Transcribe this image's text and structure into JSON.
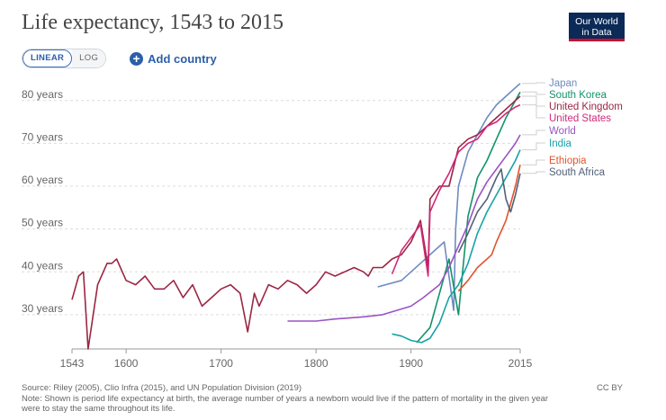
{
  "header": {
    "title": "Life expectancy, 1543 to 2015",
    "logo_line1": "Our World",
    "logo_line2": "in Data"
  },
  "toolbar": {
    "linear_label": "LINEAR",
    "log_label": "LOG",
    "add_country_label": "Add country"
  },
  "footer": {
    "source": "Source: Riley (2005), Clio Infra (2015), and UN Population Division (2019)",
    "note": "Note: Shown is period life expectancy at birth, the average number of years a newborn would live if the pattern of mortality in the given year",
    "note2": "were to stay the same throughout its life.",
    "license": "CC BY"
  },
  "chart_data": {
    "type": "line",
    "title": "Life expectancy, 1543 to 2015",
    "xlim": [
      1543,
      2015
    ],
    "ylim": [
      22,
      85
    ],
    "x_ticks": [
      1543,
      1600,
      1700,
      1800,
      1900,
      2015
    ],
    "x_tick_labels": [
      "1543",
      "1600",
      "1700",
      "1800",
      "1900",
      "2015"
    ],
    "y_ticks": [
      30,
      40,
      50,
      60,
      70,
      80
    ],
    "y_tick_labels": [
      "30 years",
      "40 years",
      "50 years",
      "60 years",
      "70 years",
      "80 years"
    ],
    "grid": "horizontal-dashed",
    "legend": "right-end-labels",
    "series": [
      {
        "name": "Japan",
        "color": "#6f8bbf",
        "x": [
          1865,
          1890,
          1910,
          1925,
          1935,
          1945,
          1947,
          1950,
          1960,
          1970,
          1980,
          1990,
          2000,
          2010,
          2015
        ],
        "y": [
          36.5,
          38,
          42,
          45,
          47,
          31,
          50,
          60,
          68,
          72,
          76,
          79,
          81,
          83,
          84
        ]
      },
      {
        "name": "South Korea",
        "color": "#12936a",
        "x": [
          1906,
          1920,
          1940,
          1950,
          1960,
          1970,
          1980,
          1990,
          2000,
          2010,
          2015
        ],
        "y": [
          23.5,
          27,
          43,
          30,
          53,
          62,
          66,
          71,
          76,
          80,
          82
        ]
      },
      {
        "name": "United Kingdom",
        "color": "#9c2643",
        "x": [
          1543,
          1550,
          1555,
          1560,
          1570,
          1580,
          1585,
          1590,
          1600,
          1610,
          1620,
          1630,
          1640,
          1650,
          1660,
          1670,
          1680,
          1690,
          1700,
          1710,
          1720,
          1728,
          1735,
          1740,
          1750,
          1760,
          1770,
          1780,
          1790,
          1800,
          1810,
          1820,
          1830,
          1840,
          1850,
          1855,
          1860,
          1870,
          1880,
          1890,
          1900,
          1910,
          1918,
          1920,
          1930,
          1940,
          1950,
          1960,
          1970,
          1980,
          1990,
          2000,
          2010,
          2015
        ],
        "y": [
          33.5,
          39,
          40,
          22,
          37,
          42,
          42,
          43,
          38,
          37,
          39,
          36,
          36,
          38,
          34,
          37,
          32,
          34,
          36,
          37,
          35,
          26,
          35,
          32,
          37,
          36,
          38,
          37,
          35,
          37,
          40,
          39,
          40,
          41,
          40,
          39,
          41,
          41,
          43,
          44,
          47,
          52,
          41,
          57,
          60,
          60,
          69,
          71,
          72,
          74,
          76,
          78,
          80,
          81
        ]
      },
      {
        "name": "United States",
        "color": "#d1297b",
        "x": [
          1880,
          1890,
          1900,
          1910,
          1918,
          1920,
          1930,
          1940,
          1950,
          1960,
          1970,
          1980,
          1990,
          2000,
          2010,
          2015
        ],
        "y": [
          39.5,
          45,
          48,
          51,
          39,
          54,
          59,
          63,
          68,
          70,
          71,
          74,
          75,
          77,
          78.5,
          79
        ]
      },
      {
        "name": "World",
        "color": "#9a54c2",
        "x": [
          1770,
          1800,
          1820,
          1850,
          1870,
          1900,
          1913,
          1930,
          1940,
          1950,
          1960,
          1970,
          1980,
          1990,
          2000,
          2010,
          2015
        ],
        "y": [
          28.5,
          28.5,
          29,
          29.5,
          30,
          32,
          34,
          37,
          41,
          46,
          51,
          57,
          61,
          64,
          67,
          70,
          72
        ]
      },
      {
        "name": "India",
        "color": "#17a2a6",
        "x": [
          1880,
          1890,
          1900,
          1911,
          1920,
          1930,
          1940,
          1950,
          1960,
          1970,
          1980,
          1990,
          2000,
          2010,
          2015
        ],
        "y": [
          25.5,
          25,
          24,
          23.5,
          24.5,
          28,
          34,
          37,
          42,
          49,
          54,
          58,
          62,
          66,
          68.5
        ]
      },
      {
        "name": "Ethiopia",
        "color": "#e0552d",
        "x": [
          1950,
          1960,
          1970,
          1980,
          1985,
          1990,
          2000,
          2010,
          2015
        ],
        "y": [
          35.5,
          38,
          41,
          43,
          44,
          47,
          52,
          60,
          65
        ]
      },
      {
        "name": "South Africa",
        "color": "#536077",
        "x": [
          1950,
          1960,
          1970,
          1980,
          1990,
          1995,
          2000,
          2005,
          2010,
          2015
        ],
        "y": [
          44.5,
          49,
          54,
          57,
          62,
          64,
          57,
          54,
          58,
          63
        ]
      }
    ]
  }
}
